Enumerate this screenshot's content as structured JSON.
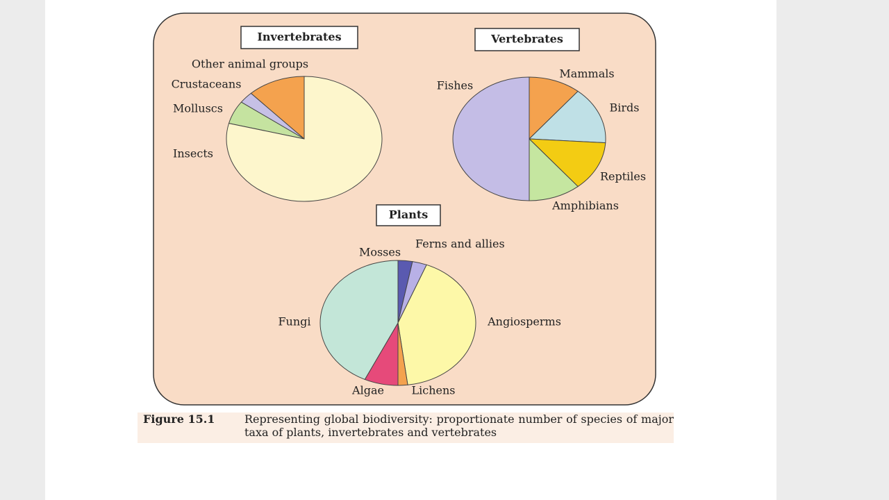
{
  "chart_data": [
    {
      "type": "pie",
      "title": "Invertebrates",
      "categories": [
        "Other animal groups",
        "Crustaceans",
        "Molluscs",
        "Insects"
      ],
      "values": [
        12,
        3,
        6,
        79
      ],
      "colors": [
        "#f4a24e",
        "#c6c0e6",
        "#c5e3a0",
        "#fdf6cc"
      ]
    },
    {
      "type": "pie",
      "title": "Vertebrates",
      "categories": [
        "Mammals",
        "Birds",
        "Reptiles",
        "Amphibians",
        "Fishes"
      ],
      "values": [
        11,
        15,
        13,
        11,
        50
      ],
      "colors": [
        "#f4a24e",
        "#bfe0e6",
        "#f3cc13",
        "#c5e6a0",
        "#c4bde6"
      ]
    },
    {
      "type": "pie",
      "title": "Plants",
      "categories": [
        "Mosses",
        "Ferns and allies",
        "Angiosperms",
        "Lichens",
        "Algae",
        "Fungi"
      ],
      "values": [
        3,
        3,
        42,
        2,
        7,
        43
      ],
      "colors": [
        "#5a5ab0",
        "#b8b0e6",
        "#fdf8a8",
        "#f4a24e",
        "#e64a7a",
        "#c3e6d8"
      ]
    }
  ],
  "caption_label": "Figure 15.1",
  "caption": "Representing global biodiversity: proportionate number of species of major taxa of plants, invertebrates and vertebrates"
}
